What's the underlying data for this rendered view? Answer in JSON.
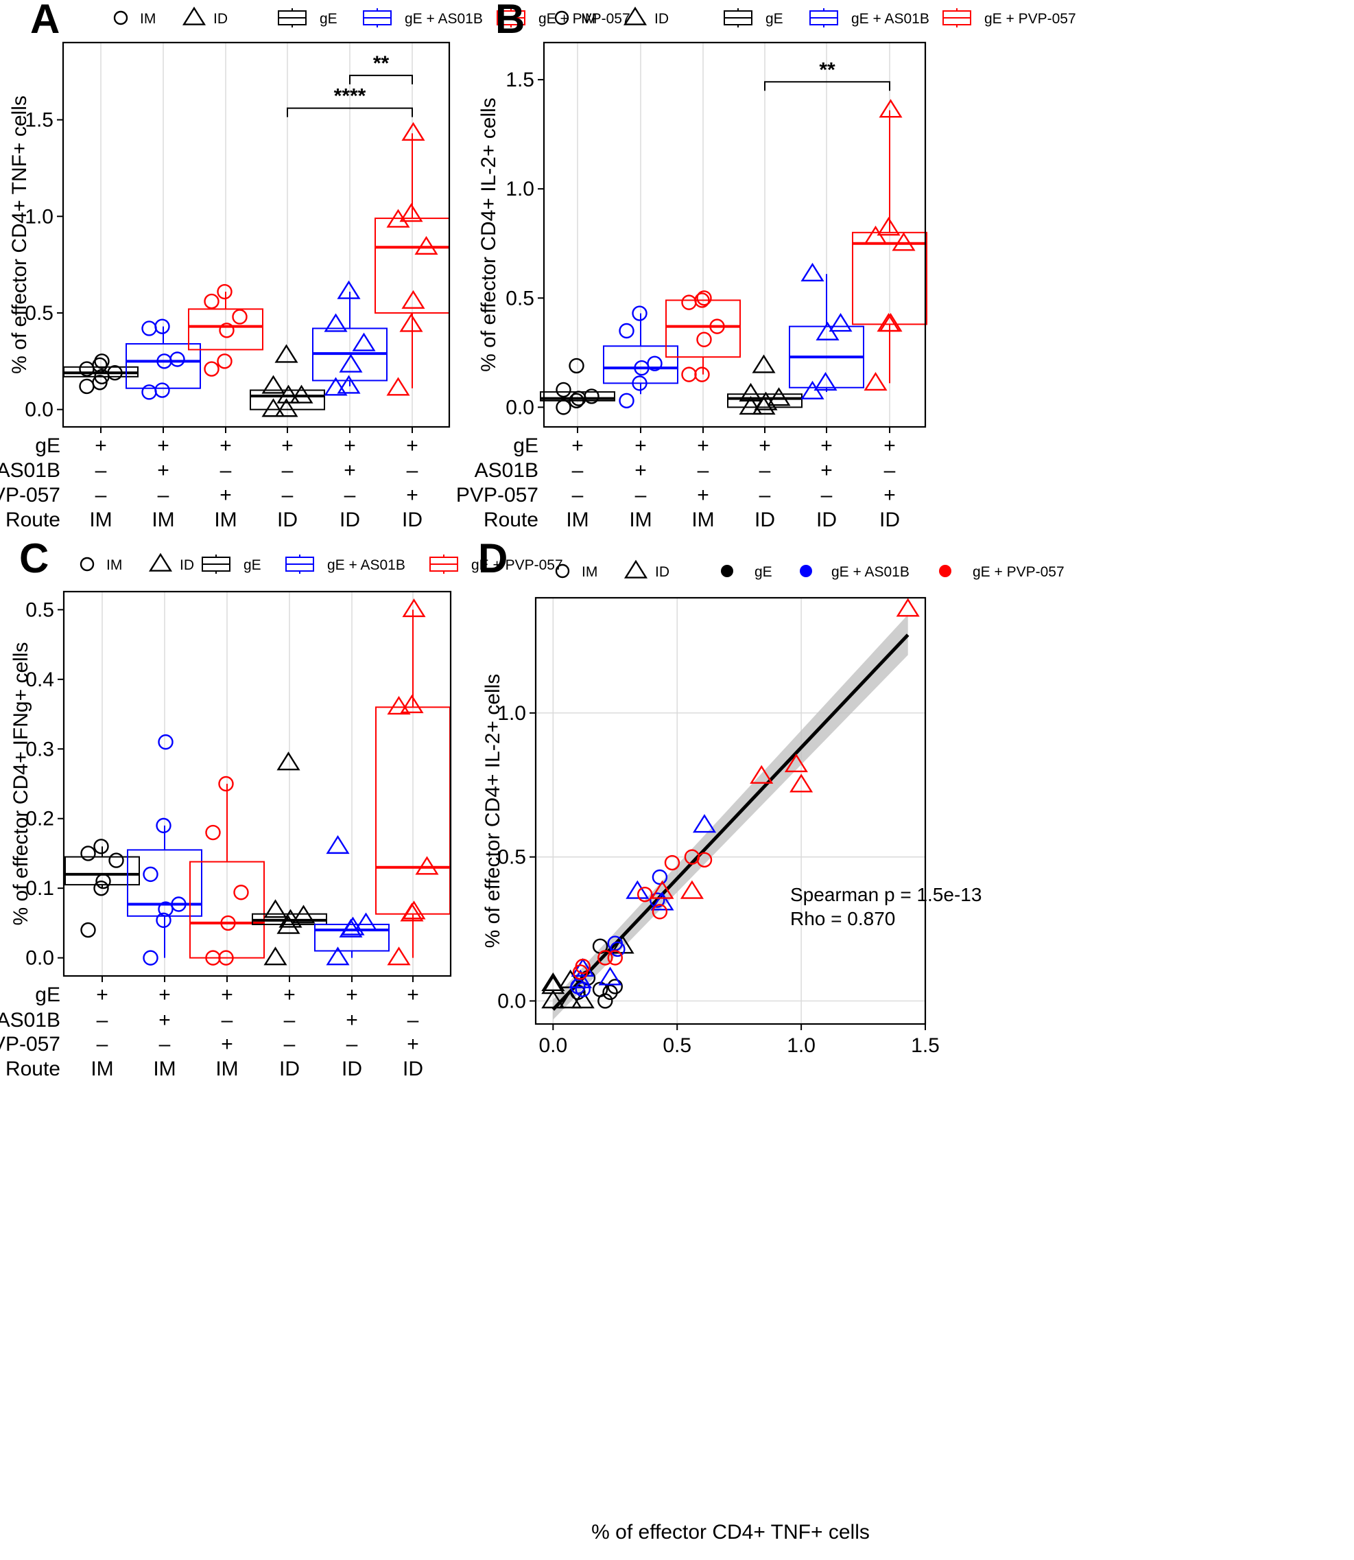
{
  "figure": {
    "legend": {
      "route_IM": "IM",
      "route_ID": "ID",
      "group_gE": "gE",
      "group_gE_AS01B": "gE + AS01B",
      "group_gE_PVP": "gE + PVP-057"
    },
    "colors": {
      "gE": "#000000",
      "AS01B": "#0000ff",
      "PVP": "#ff0000",
      "grid": "#d9d9d9",
      "band": "#bdbdbd"
    },
    "design_table": {
      "row_labels": [
        "gE",
        "AS01B",
        "PVP-057",
        "Route"
      ],
      "columns": [
        {
          "gE": "+",
          "AS01B": "–",
          "PVP": "–",
          "route": "IM"
        },
        {
          "gE": "+",
          "AS01B": "+",
          "PVP": "–",
          "route": "IM"
        },
        {
          "gE": "+",
          "AS01B": "–",
          "PVP": "+",
          "route": "IM"
        },
        {
          "gE": "+",
          "AS01B": "–",
          "PVP": "–",
          "route": "ID"
        },
        {
          "gE": "+",
          "AS01B": "+",
          "PVP": "–",
          "route": "ID"
        },
        {
          "gE": "+",
          "AS01B": "–",
          "PVP": "+",
          "route": "ID"
        }
      ]
    }
  },
  "chart_data": [
    {
      "panel": "A",
      "type": "box",
      "ylabel": "% of effector CD4+ TNF+ cells",
      "ylim": [
        -0.09,
        1.9
      ],
      "yticks": [
        "0.0",
        "0.5",
        "1.0",
        "1.5"
      ],
      "groups": [
        {
          "name": "gE IM",
          "shape": "circle",
          "color": "gE",
          "q1": 0.17,
          "median": 0.19,
          "q3": 0.22,
          "whisk_lo": 0.17,
          "whisk_hi": 0.22,
          "points": [
            0.12,
            0.14,
            0.17,
            0.19,
            0.21,
            0.23,
            0.25
          ]
        },
        {
          "name": "gE + AS01B IM",
          "shape": "circle",
          "color": "AS01B",
          "q1": 0.11,
          "median": 0.25,
          "q3": 0.34,
          "whisk_lo": 0.11,
          "whisk_hi": 0.43,
          "points": [
            0.09,
            0.1,
            0.25,
            0.26,
            0.42,
            0.43
          ]
        },
        {
          "name": "gE + PVP-057 IM",
          "shape": "circle",
          "color": "PVP",
          "q1": 0.31,
          "median": 0.43,
          "q3": 0.52,
          "whisk_lo": 0.31,
          "whisk_hi": 0.61,
          "points": [
            0.21,
            0.25,
            0.41,
            0.48,
            0.56,
            0.61
          ]
        },
        {
          "name": "gE ID",
          "shape": "triangle",
          "color": "gE",
          "q1": 0.0,
          "median": 0.07,
          "q3": 0.1,
          "whisk_lo": 0.0,
          "whisk_hi": 0.1,
          "points": [
            0.0,
            0.0,
            0.07,
            0.07,
            0.12,
            0.28
          ]
        },
        {
          "name": "gE + AS01B ID",
          "shape": "triangle",
          "color": "AS01B",
          "q1": 0.15,
          "median": 0.29,
          "q3": 0.42,
          "whisk_lo": 0.12,
          "whisk_hi": 0.61,
          "points": [
            0.11,
            0.12,
            0.23,
            0.34,
            0.44,
            0.61
          ]
        },
        {
          "name": "gE + PVP-057 ID",
          "shape": "triangle",
          "color": "PVP",
          "q1": 0.5,
          "median": 0.84,
          "q3": 0.99,
          "whisk_lo": 0.11,
          "whisk_hi": 1.43,
          "points": [
            0.11,
            0.44,
            0.56,
            0.84,
            0.98,
            1.01,
            1.43
          ]
        }
      ],
      "significance": [
        {
          "from": 4,
          "to": 5,
          "y": 1.73,
          "label": "**"
        },
        {
          "from": 3,
          "to": 5,
          "y": 1.56,
          "label": "****"
        }
      ]
    },
    {
      "panel": "B",
      "type": "box",
      "ylabel": "% of effector CD4+ IL-2+ cells",
      "ylim": [
        -0.09,
        1.67
      ],
      "yticks": [
        "0.0",
        "0.5",
        "1.0",
        "1.5"
      ],
      "groups": [
        {
          "name": "gE IM",
          "shape": "circle",
          "color": "gE",
          "q1": 0.03,
          "median": 0.04,
          "q3": 0.07,
          "whisk_lo": 0.03,
          "whisk_hi": 0.07,
          "points": [
            0.0,
            0.03,
            0.04,
            0.05,
            0.08,
            0.19
          ]
        },
        {
          "name": "gE + AS01B IM",
          "shape": "circle",
          "color": "AS01B",
          "q1": 0.11,
          "median": 0.18,
          "q3": 0.28,
          "whisk_lo": 0.06,
          "whisk_hi": 0.43,
          "points": [
            0.03,
            0.11,
            0.18,
            0.2,
            0.35,
            0.43
          ]
        },
        {
          "name": "gE + PVP-057 IM",
          "shape": "circle",
          "color": "PVP",
          "q1": 0.23,
          "median": 0.37,
          "q3": 0.49,
          "whisk_lo": 0.15,
          "whisk_hi": 0.49,
          "points": [
            0.15,
            0.15,
            0.31,
            0.37,
            0.48,
            0.49,
            0.5
          ]
        },
        {
          "name": "gE ID",
          "shape": "triangle",
          "color": "gE",
          "q1": 0.0,
          "median": 0.04,
          "q3": 0.06,
          "whisk_lo": 0.0,
          "whisk_hi": 0.06,
          "points": [
            0.0,
            0.0,
            0.02,
            0.04,
            0.06,
            0.19
          ]
        },
        {
          "name": "gE + AS01B ID",
          "shape": "triangle",
          "color": "AS01B",
          "q1": 0.09,
          "median": 0.23,
          "q3": 0.37,
          "whisk_lo": 0.07,
          "whisk_hi": 0.61,
          "points": [
            0.07,
            0.11,
            0.34,
            0.38,
            0.61
          ]
        },
        {
          "name": "gE + PVP-057 ID",
          "shape": "triangle",
          "color": "PVP",
          "q1": 0.38,
          "median": 0.75,
          "q3": 0.8,
          "whisk_lo": 0.11,
          "whisk_hi": 1.36,
          "points": [
            0.11,
            0.38,
            0.38,
            0.75,
            0.78,
            0.82,
            1.36
          ]
        }
      ],
      "significance": [
        {
          "from": 3,
          "to": 5,
          "y": 1.49,
          "label": "**"
        }
      ]
    },
    {
      "panel": "C",
      "type": "box",
      "ylabel": "% of effector CD4+ IFNg+ cells",
      "ylim": [
        -0.026,
        0.526
      ],
      "yticks": [
        "0.0",
        "0.1",
        "0.2",
        "0.3",
        "0.4",
        "0.5"
      ],
      "groups": [
        {
          "name": "gE IM",
          "shape": "circle",
          "color": "gE",
          "q1": 0.105,
          "median": 0.12,
          "q3": 0.145,
          "whisk_lo": 0.1,
          "whisk_hi": 0.16,
          "points": [
            0.04,
            0.1,
            0.11,
            0.14,
            0.15,
            0.16
          ]
        },
        {
          "name": "gE + AS01B IM",
          "shape": "circle",
          "color": "AS01B",
          "q1": 0.06,
          "median": 0.077,
          "q3": 0.155,
          "whisk_lo": 0.0,
          "whisk_hi": 0.19,
          "points": [
            0.0,
            0.054,
            0.07,
            0.077,
            0.12,
            0.19,
            0.31
          ]
        },
        {
          "name": "gE + PVP-057 IM",
          "shape": "circle",
          "color": "PVP",
          "q1": 0.0,
          "median": 0.05,
          "q3": 0.138,
          "whisk_lo": 0.0,
          "whisk_hi": 0.25,
          "points": [
            0.0,
            0.0,
            0.05,
            0.094,
            0.18,
            0.25
          ]
        },
        {
          "name": "gE ID",
          "shape": "triangle",
          "color": "gE",
          "q1": 0.048,
          "median": 0.054,
          "q3": 0.063,
          "whisk_lo": 0.048,
          "whisk_hi": 0.063,
          "points": [
            0.0,
            0.045,
            0.054,
            0.06,
            0.068,
            0.28
          ]
        },
        {
          "name": "gE + AS01B ID",
          "shape": "triangle",
          "color": "AS01B",
          "q1": 0.01,
          "median": 0.04,
          "q3": 0.048,
          "whisk_lo": 0.0,
          "whisk_hi": 0.048,
          "points": [
            0.0,
            0.04,
            0.043,
            0.049,
            0.16
          ]
        },
        {
          "name": "gE + PVP-057 ID",
          "shape": "triangle",
          "color": "PVP",
          "q1": 0.063,
          "median": 0.13,
          "q3": 0.36,
          "whisk_lo": 0.0,
          "whisk_hi": 0.5,
          "points": [
            0.0,
            0.063,
            0.066,
            0.13,
            0.36,
            0.362,
            0.5
          ]
        }
      ]
    },
    {
      "panel": "D",
      "type": "scatter",
      "xlabel": "% of effector CD4+ TNF+ cells",
      "ylabel": "% of effector CD4+ IL-2+ cells",
      "xlim": [
        -0.07,
        1.5
      ],
      "ylim": [
        -0.08,
        1.4
      ],
      "xticks": [
        "0.0",
        "0.5",
        "1.0",
        "1.5"
      ],
      "yticks": [
        "0.0",
        "0.5",
        "1.0"
      ],
      "annotation_line1": "Spearman p = 1.5e-13",
      "annotation_line2": "Rho = 0.870",
      "fit": {
        "intercept": -0.03,
        "slope": 0.91,
        "x_range": [
          0.0,
          1.43
        ]
      },
      "points": [
        {
          "x": 0.0,
          "y": 0.0,
          "shape": "triangle",
          "color": "gE"
        },
        {
          "x": 0.0,
          "y": 0.05,
          "shape": "triangle",
          "color": "gE"
        },
        {
          "x": 0.0,
          "y": 0.06,
          "shape": "triangle",
          "color": "gE"
        },
        {
          "x": 0.07,
          "y": 0.07,
          "shape": "triangle",
          "color": "gE"
        },
        {
          "x": 0.07,
          "y": 0.0,
          "shape": "triangle",
          "color": "gE"
        },
        {
          "x": 0.12,
          "y": 0.0,
          "shape": "triangle",
          "color": "gE"
        },
        {
          "x": 0.28,
          "y": 0.19,
          "shape": "triangle",
          "color": "gE"
        },
        {
          "x": 0.1,
          "y": 0.03,
          "shape": "circle",
          "color": "gE"
        },
        {
          "x": 0.14,
          "y": 0.08,
          "shape": "circle",
          "color": "gE"
        },
        {
          "x": 0.19,
          "y": 0.04,
          "shape": "circle",
          "color": "gE"
        },
        {
          "x": 0.21,
          "y": 0.0,
          "shape": "circle",
          "color": "gE"
        },
        {
          "x": 0.23,
          "y": 0.03,
          "shape": "circle",
          "color": "gE"
        },
        {
          "x": 0.25,
          "y": 0.05,
          "shape": "circle",
          "color": "gE"
        },
        {
          "x": 0.19,
          "y": 0.19,
          "shape": "circle",
          "color": "gE"
        },
        {
          "x": 0.1,
          "y": 0.05,
          "shape": "circle",
          "color": "AS01B"
        },
        {
          "x": 0.12,
          "y": 0.04,
          "shape": "circle",
          "color": "AS01B"
        },
        {
          "x": 0.25,
          "y": 0.2,
          "shape": "circle",
          "color": "AS01B"
        },
        {
          "x": 0.26,
          "y": 0.18,
          "shape": "circle",
          "color": "AS01B"
        },
        {
          "x": 0.42,
          "y": 0.35,
          "shape": "circle",
          "color": "AS01B"
        },
        {
          "x": 0.43,
          "y": 0.43,
          "shape": "circle",
          "color": "AS01B"
        },
        {
          "x": 0.11,
          "y": 0.07,
          "shape": "triangle",
          "color": "AS01B"
        },
        {
          "x": 0.12,
          "y": 0.11,
          "shape": "triangle",
          "color": "AS01B"
        },
        {
          "x": 0.23,
          "y": 0.08,
          "shape": "triangle",
          "color": "AS01B"
        },
        {
          "x": 0.34,
          "y": 0.38,
          "shape": "triangle",
          "color": "AS01B"
        },
        {
          "x": 0.44,
          "y": 0.34,
          "shape": "triangle",
          "color": "AS01B"
        },
        {
          "x": 0.61,
          "y": 0.61,
          "shape": "triangle",
          "color": "AS01B"
        },
        {
          "x": 0.11,
          "y": 0.1,
          "shape": "circle",
          "color": "PVP"
        },
        {
          "x": 0.12,
          "y": 0.12,
          "shape": "circle",
          "color": "PVP"
        },
        {
          "x": 0.21,
          "y": 0.15,
          "shape": "circle",
          "color": "PVP"
        },
        {
          "x": 0.25,
          "y": 0.15,
          "shape": "circle",
          "color": "PVP"
        },
        {
          "x": 0.37,
          "y": 0.37,
          "shape": "circle",
          "color": "PVP"
        },
        {
          "x": 0.43,
          "y": 0.31,
          "shape": "circle",
          "color": "PVP"
        },
        {
          "x": 0.48,
          "y": 0.48,
          "shape": "circle",
          "color": "PVP"
        },
        {
          "x": 0.56,
          "y": 0.5,
          "shape": "circle",
          "color": "PVP"
        },
        {
          "x": 0.61,
          "y": 0.49,
          "shape": "circle",
          "color": "PVP"
        },
        {
          "x": 0.44,
          "y": 0.38,
          "shape": "triangle",
          "color": "PVP"
        },
        {
          "x": 0.56,
          "y": 0.38,
          "shape": "triangle",
          "color": "PVP"
        },
        {
          "x": 0.84,
          "y": 0.78,
          "shape": "triangle",
          "color": "PVP"
        },
        {
          "x": 0.98,
          "y": 0.82,
          "shape": "triangle",
          "color": "PVP"
        },
        {
          "x": 1.0,
          "y": 0.75,
          "shape": "triangle",
          "color": "PVP"
        },
        {
          "x": 1.43,
          "y": 1.36,
          "shape": "triangle",
          "color": "PVP"
        }
      ]
    }
  ]
}
